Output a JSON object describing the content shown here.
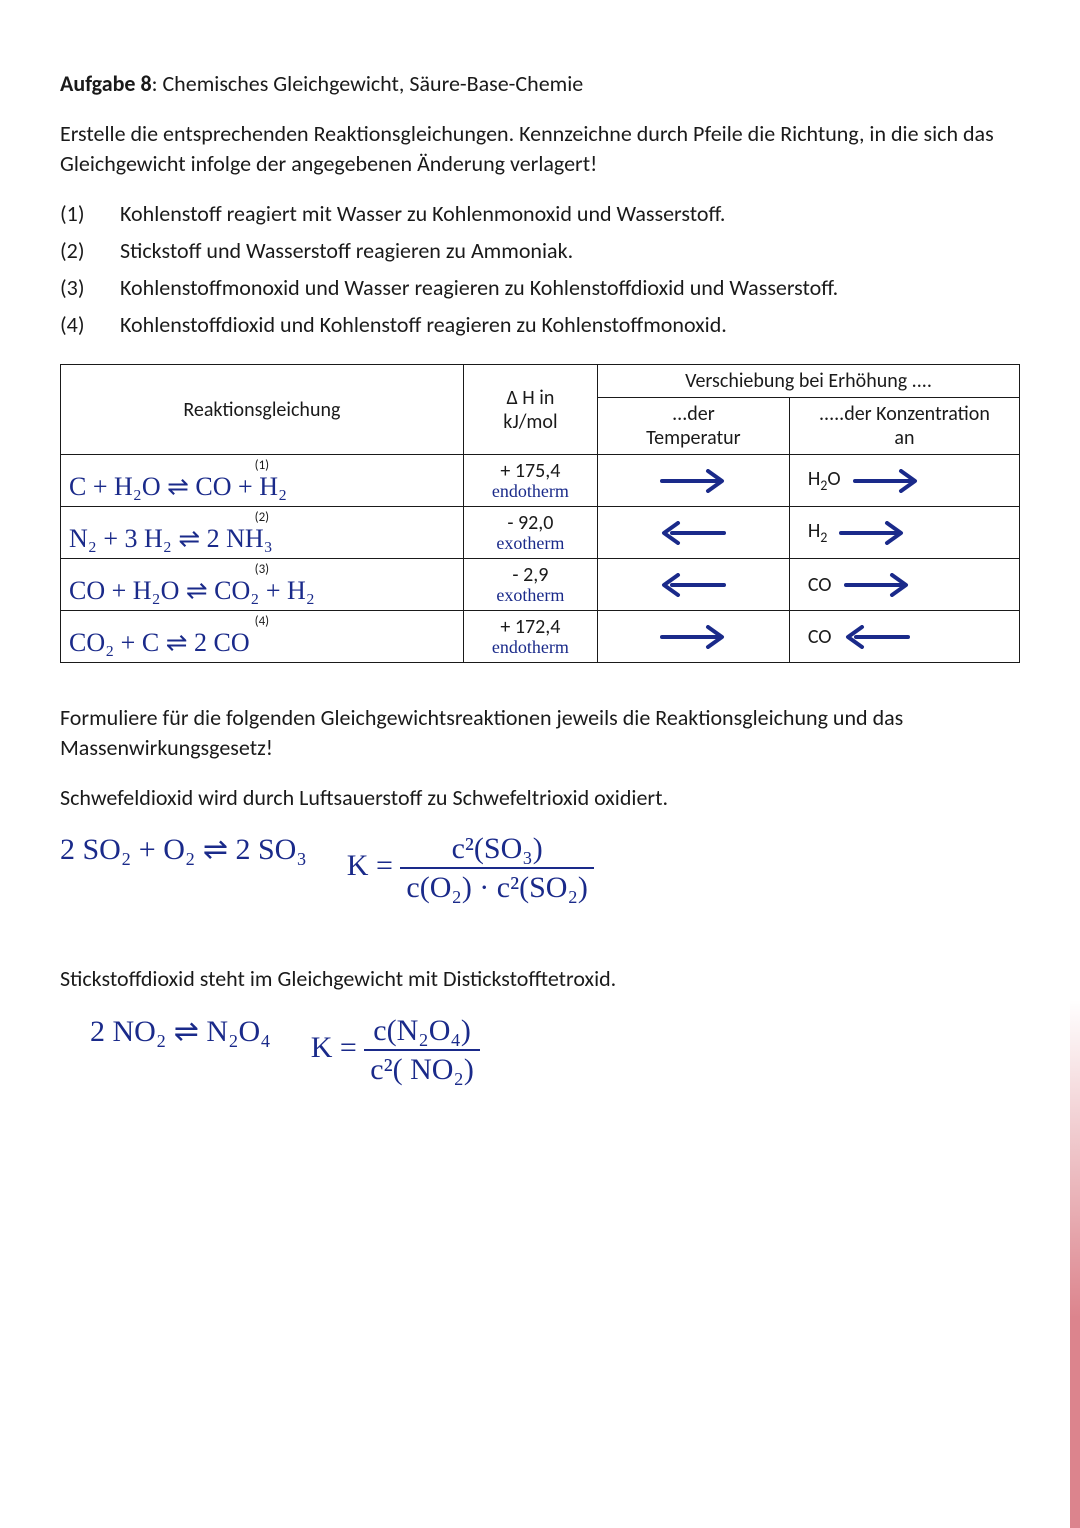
{
  "colors": {
    "ink_print": "#1a1a1a",
    "ink_pen": "#1a2a8a",
    "paper": "#ffffff",
    "page_bg": "#f2f4f6",
    "table_border": "#1a1a1a",
    "arrow_stroke": "#1a2a8a",
    "red_margin": "#c02030"
  },
  "title": {
    "label": "Aufgabe 8",
    "rest": ": Chemisches Gleichgewicht, Säure-Base-Chemie"
  },
  "intro": "Erstelle die entsprechenden Reaktionsgleichungen. Kennzeichne durch Pfeile die Richtung, in die sich das Gleichgewicht infolge der angegebenen Änderung verlagert!",
  "items": [
    {
      "n": "(1)",
      "t": "Kohlenstoff reagiert mit Wasser zu Kohlenmonoxid und Wasserstoff."
    },
    {
      "n": "(2)",
      "t": "Stickstoff und Wasserstoff reagieren zu Ammoniak."
    },
    {
      "n": "(3)",
      "t": "Kohlenstoffmonoxid und Wasser reagieren zu Kohlenstoffdioxid und Wasserstoff."
    },
    {
      "n": "(4)",
      "t": "Kohlenstoffdioxid und Kohlenstoff reagieren zu Kohlenstoffmonoxid."
    }
  ],
  "table": {
    "head": {
      "c1": "Reaktionsgleichung",
      "c2a": "Δ H in",
      "c2b": "kJ/mol",
      "c3": "Verschiebung bei Erhöhung ....",
      "sub_temp_a": "...der",
      "sub_temp_b": "Temperatur",
      "sub_conc_a": ".....der Konzentration",
      "sub_conc_b": "an"
    },
    "rows": [
      {
        "num": "(1)",
        "eq": "C  +  H₂O   ⇌  CO  +  H₂",
        "dh": "+ 175,4",
        "therm": "endotherm",
        "temp_dir": "right",
        "conc_species": "H₂O",
        "conc_dir": "right"
      },
      {
        "num": "(2)",
        "eq": "N₂ + 3 H₂  ⇌  2 NH₃",
        "dh": "- 92,0",
        "therm": "exotherm",
        "temp_dir": "left",
        "conc_species": "H₂",
        "conc_dir": "right"
      },
      {
        "num": "(3)",
        "eq": "CO + H₂O ⇌  CO₂ + H₂",
        "dh": "- 2,9",
        "therm": "exotherm",
        "temp_dir": "left",
        "conc_species": "CO",
        "conc_dir": "right"
      },
      {
        "num": "(4)",
        "eq": "CO₂ +  C  ⇌  2 CO",
        "dh": "+ 172,4",
        "therm": "endotherm",
        "temp_dir": "right",
        "conc_species": "CO",
        "conc_dir": "left"
      }
    ]
  },
  "para2": "Formuliere für die folgenden Gleichgewichtsreaktionen jeweils die Reaktionsgleichung und das Massenwirkungsgesetz!",
  "q1": {
    "text": "Schwefeldioxid wird durch Luftsauerstoff zu Schwefeltrioxid oxidiert.",
    "eq": "2 SO₂  +  O₂  ⇌  2 SO₃",
    "k_lhs": "K =",
    "k_num": "c²(SO₃)",
    "k_den": "c(O₂) · c²(SO₂)"
  },
  "q2": {
    "text": "Stickstoffdioxid steht im Gleichgewicht mit Distickstofftetroxid.",
    "eq": "2 NO₂   ⇌   N₂O₄",
    "k_lhs": "K =",
    "k_num": "c(N₂O₄)",
    "k_den": "c²( NO₂)"
  },
  "arrow_style": {
    "stroke_width": 4,
    "length": 70,
    "head": 14
  }
}
